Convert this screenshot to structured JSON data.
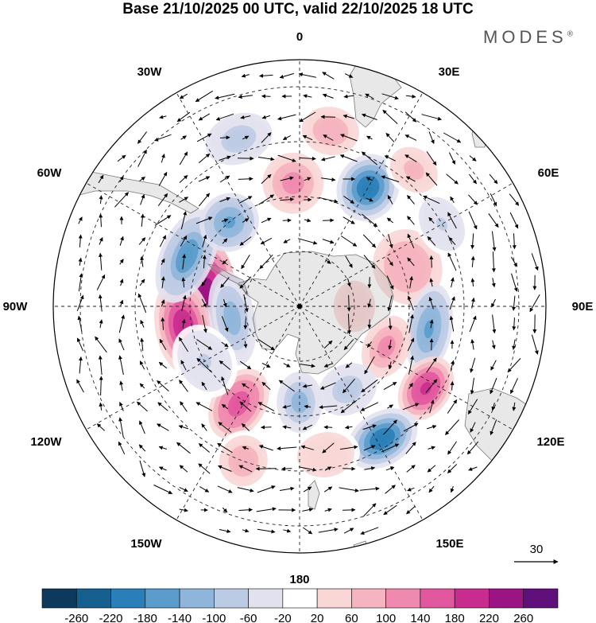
{
  "title": "Base 21/10/2025 00 UTC, valid 22/10/2025 18 UTC",
  "brand": "MODES",
  "brand_mark": "®",
  "longitude_labels": {
    "lon_0": "0",
    "lon_30e": "30E",
    "lon_60e": "60E",
    "lon_90e": "90E",
    "lon_120e": "120E",
    "lon_150e": "150E",
    "lon_180": "180",
    "lon_150w": "150W",
    "lon_120w": "120W",
    "lon_90w": "90W",
    "lon_60w": "60W",
    "lon_30w": "30W"
  },
  "reference_vector": {
    "value": "30"
  },
  "colorbar": {
    "colors": [
      "#0d3a5c",
      "#16608f",
      "#2b7fb8",
      "#5a9ccb",
      "#8fb6da",
      "#bccbe4",
      "#e2e2ef",
      "#ffffff",
      "#f9d7d7",
      "#f5b4bf",
      "#ef89ae",
      "#e2589f",
      "#c92c8f",
      "#9a1484",
      "#5e0f7a"
    ],
    "tick_labels": [
      "-260",
      "-220",
      "-180",
      "-140",
      "-100",
      "-60",
      "-20",
      "20",
      "60",
      "100",
      "140",
      "180",
      "220",
      "260"
    ]
  },
  "anomaly_features": [
    {
      "sign": "positive",
      "value": 250,
      "lon": -85,
      "lat": -55,
      "sx": 3.0,
      "sy": 1.6
    },
    {
      "sign": "positive",
      "value": 210,
      "lon": -100,
      "lat": -47,
      "sx": 2.6,
      "sy": 1.5
    },
    {
      "sign": "negative",
      "value": -160,
      "lon": -66,
      "lat": -45,
      "sx": 2.6,
      "sy": 1.4
    },
    {
      "sign": "negative",
      "value": -150,
      "lon": -40,
      "lat": -50,
      "sx": 1.6,
      "sy": 1.5
    },
    {
      "sign": "positive",
      "value": 120,
      "lon": -3,
      "lat": -45,
      "sx": 1.6,
      "sy": 1.6
    },
    {
      "sign": "negative",
      "value": -200,
      "lon": 30,
      "lat": -40,
      "sx": 1.6,
      "sy": 1.8
    },
    {
      "sign": "positive",
      "value": 100,
      "lon": 70,
      "lat": -48,
      "sx": 2.0,
      "sy": 1.8
    },
    {
      "sign": "negative",
      "value": -140,
      "lon": 100,
      "lat": -42,
      "sx": 2.4,
      "sy": 1.2
    },
    {
      "sign": "positive",
      "value": 200,
      "lon": 123,
      "lat": -35,
      "sx": 1.8,
      "sy": 1.3
    },
    {
      "sign": "positive",
      "value": 120,
      "lon": 115,
      "lat": -55,
      "sx": 1.7,
      "sy": 1.2
    },
    {
      "sign": "negative",
      "value": -200,
      "lon": 148,
      "lat": -33,
      "sx": 2.0,
      "sy": 1.4
    },
    {
      "sign": "negative",
      "value": -120,
      "lon": 180,
      "lat": -55,
      "sx": 1.2,
      "sy": 1.6
    },
    {
      "sign": "positive",
      "value": 60,
      "lon": 170,
      "lat": -35,
      "sx": 1.8,
      "sy": 1.4
    },
    {
      "sign": "positive",
      "value": 170,
      "lon": -148,
      "lat": -48,
      "sx": 1.4,
      "sy": 2.0
    },
    {
      "sign": "negative",
      "value": -120,
      "lon": -100,
      "lat": -65,
      "sx": 2.5,
      "sy": 1.2
    },
    {
      "sign": "negative",
      "value": -60,
      "lon": -120,
      "lat": -50,
      "sx": 2.0,
      "sy": 1.6
    },
    {
      "sign": "positive",
      "value": 80,
      "lon": -160,
      "lat": -30,
      "sx": 1.5,
      "sy": 1.6
    },
    {
      "sign": "positive",
      "value": 80,
      "lon": 10,
      "lat": -25,
      "sx": 1.8,
      "sy": 1.5
    },
    {
      "sign": "negative",
      "value": -80,
      "lon": -20,
      "lat": -25,
      "sx": 1.8,
      "sy": 1.3
    },
    {
      "sign": "negative",
      "value": -60,
      "lon": 60,
      "lat": -30,
      "sx": 1.8,
      "sy": 1.3
    },
    {
      "sign": "positive",
      "value": 70,
      "lon": 40,
      "lat": -25,
      "sx": 1.6,
      "sy": 1.3
    },
    {
      "sign": "negative",
      "value": -80,
      "lon": 150,
      "lat": -55,
      "sx": 1.6,
      "sy": 1.3
    },
    {
      "sign": "positive",
      "value": 60,
      "lon": 90,
      "lat": -70,
      "sx": 1.6,
      "sy": 1.3
    }
  ]
}
